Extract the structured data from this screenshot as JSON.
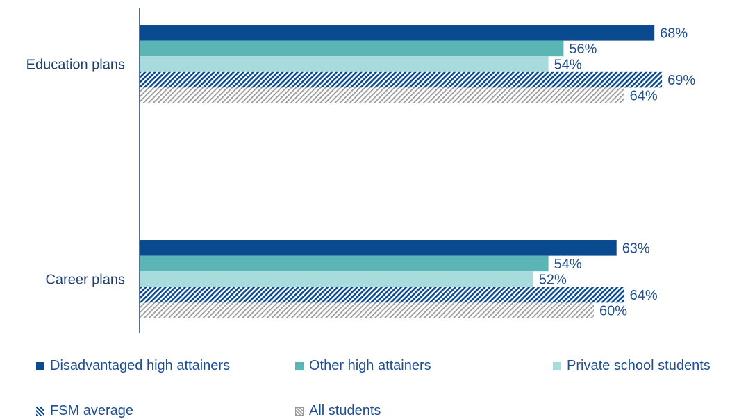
{
  "chart_data": {
    "type": "bar",
    "orientation": "horizontal",
    "categories": [
      "Education plans",
      "Career plans"
    ],
    "series": [
      {
        "name": "Disadvantaged high attainers",
        "values": [
          68,
          63
        ],
        "labels": [
          "68%",
          "63%"
        ],
        "color": "#0a4a8f",
        "pattern": "solid"
      },
      {
        "name": "Other high attainers",
        "values": [
          56,
          54
        ],
        "labels": [
          "56%",
          "54%"
        ],
        "color": "#5bb5b5",
        "pattern": "solid"
      },
      {
        "name": "Private school students",
        "values": [
          54,
          52
        ],
        "labels": [
          "54%",
          "52%"
        ],
        "color": "#a8dcdc",
        "pattern": "solid"
      },
      {
        "name": "FSM average",
        "values": [
          69,
          64
        ],
        "labels": [
          "69%",
          "64%"
        ],
        "color": "#0a4a8f",
        "pattern": "hatch"
      },
      {
        "name": "All students",
        "values": [
          64,
          60
        ],
        "labels": [
          "64%",
          "60%"
        ],
        "color": "#9a9a9a",
        "pattern": "hatch"
      }
    ],
    "xlim": [
      0,
      78
    ],
    "grid": false,
    "legend_position": "bottom"
  }
}
